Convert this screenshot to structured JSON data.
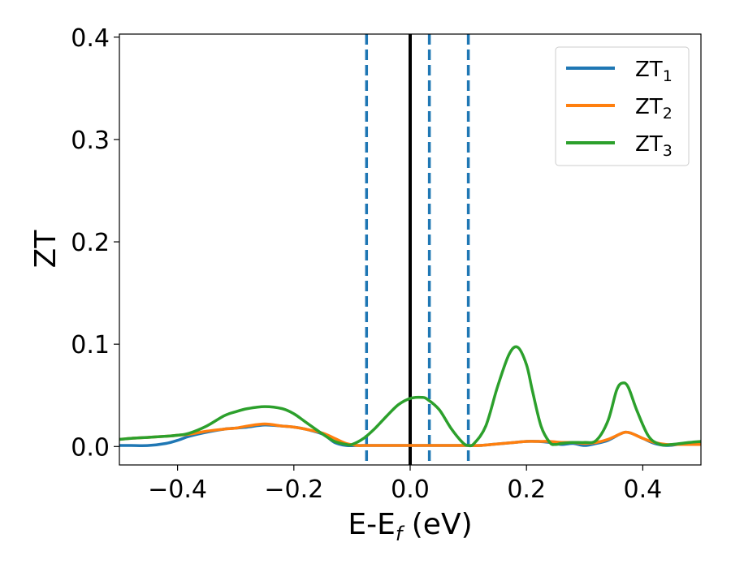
{
  "chart_data": {
    "type": "line",
    "xlabel": "E-E",
    "xlabel_sub": "f",
    "xlabel_unit": " (eV)",
    "ylabel": "ZT",
    "xlim": [
      -0.5,
      0.5
    ],
    "ylim": [
      -0.018,
      0.403
    ],
    "x_ticks": [
      -0.4,
      -0.2,
      0.0,
      0.2,
      0.4
    ],
    "x_tick_labels": [
      "−0.4",
      "−0.2",
      "0.0",
      "0.2",
      "0.4"
    ],
    "y_ticks": [
      0.0,
      0.1,
      0.2,
      0.3,
      0.4
    ],
    "y_tick_labels": [
      "0.0",
      "0.1",
      "0.2",
      "0.3",
      "0.4"
    ],
    "grid": false,
    "legend_position": "top-right",
    "vertical_lines": [
      {
        "x": -0.075,
        "style": "dashed",
        "color": "#1f77b4"
      },
      {
        "x": 0.0,
        "style": "solid",
        "color": "#000000"
      },
      {
        "x": 0.033,
        "style": "dashed",
        "color": "#1f77b4"
      },
      {
        "x": 0.1,
        "style": "dashed",
        "color": "#1f77b4"
      }
    ],
    "series": [
      {
        "name": "ZT",
        "name_sub": "1",
        "color": "#1f77b4",
        "x": [
          -0.5,
          -0.48,
          -0.45,
          -0.42,
          -0.4,
          -0.38,
          -0.35,
          -0.32,
          -0.3,
          -0.28,
          -0.25,
          -0.22,
          -0.2,
          -0.18,
          -0.15,
          -0.13,
          -0.11,
          -0.09,
          -0.08,
          -0.06,
          -0.04,
          -0.02,
          0.0,
          0.02,
          0.04,
          0.06,
          0.08,
          0.1,
          0.12,
          0.14,
          0.16,
          0.18,
          0.2,
          0.22,
          0.24,
          0.26,
          0.28,
          0.3,
          0.32,
          0.34,
          0.36,
          0.37,
          0.38,
          0.4,
          0.42,
          0.44,
          0.46,
          0.48,
          0.5
        ],
        "y": [
          0.001,
          0.001,
          0.001,
          0.003,
          0.006,
          0.01,
          0.014,
          0.017,
          0.018,
          0.019,
          0.021,
          0.02,
          0.019,
          0.017,
          0.012,
          0.004,
          0.001,
          0.001,
          0.001,
          0.001,
          0.001,
          0.001,
          0.001,
          0.001,
          0.001,
          0.001,
          0.001,
          0.001,
          0.001,
          0.002,
          0.003,
          0.004,
          0.005,
          0.005,
          0.004,
          0.002,
          0.003,
          0.001,
          0.003,
          0.006,
          0.012,
          0.014,
          0.013,
          0.008,
          0.003,
          0.001,
          0.002,
          0.003,
          0.004
        ]
      },
      {
        "name": "ZT",
        "name_sub": "2",
        "color": "#ff7f0e",
        "x": [
          -0.5,
          -0.48,
          -0.45,
          -0.42,
          -0.4,
          -0.38,
          -0.35,
          -0.32,
          -0.3,
          -0.28,
          -0.25,
          -0.22,
          -0.2,
          -0.18,
          -0.15,
          -0.13,
          -0.11,
          -0.09,
          -0.08,
          -0.06,
          -0.04,
          -0.02,
          0.0,
          0.02,
          0.04,
          0.06,
          0.08,
          0.1,
          0.12,
          0.14,
          0.16,
          0.18,
          0.2,
          0.22,
          0.24,
          0.26,
          0.28,
          0.3,
          0.32,
          0.34,
          0.36,
          0.37,
          0.38,
          0.4,
          0.42,
          0.44,
          0.46,
          0.48,
          0.5
        ],
        "y": [
          0.007,
          0.008,
          0.009,
          0.01,
          0.011,
          0.012,
          0.015,
          0.017,
          0.018,
          0.02,
          0.022,
          0.02,
          0.019,
          0.017,
          0.013,
          0.008,
          0.003,
          0.001,
          0.001,
          0.001,
          0.001,
          0.001,
          0.001,
          0.001,
          0.001,
          0.001,
          0.001,
          0.001,
          0.001,
          0.002,
          0.003,
          0.004,
          0.005,
          0.005,
          0.005,
          0.004,
          0.004,
          0.003,
          0.004,
          0.007,
          0.012,
          0.014,
          0.013,
          0.008,
          0.004,
          0.002,
          0.002,
          0.002,
          0.002
        ]
      },
      {
        "name": "ZT",
        "name_sub": "3",
        "color": "#2ca02c",
        "x": [
          -0.5,
          -0.48,
          -0.45,
          -0.42,
          -0.4,
          -0.38,
          -0.35,
          -0.32,
          -0.3,
          -0.28,
          -0.25,
          -0.22,
          -0.2,
          -0.18,
          -0.15,
          -0.13,
          -0.11,
          -0.1,
          -0.08,
          -0.06,
          -0.04,
          -0.02,
          0.0,
          0.02,
          0.03,
          0.05,
          0.07,
          0.09,
          0.1,
          0.11,
          0.13,
          0.15,
          0.17,
          0.185,
          0.2,
          0.21,
          0.225,
          0.24,
          0.25,
          0.26,
          0.28,
          0.3,
          0.32,
          0.34,
          0.355,
          0.365,
          0.375,
          0.39,
          0.41,
          0.43,
          0.45,
          0.48,
          0.5
        ],
        "y": [
          0.007,
          0.008,
          0.009,
          0.01,
          0.011,
          0.013,
          0.02,
          0.03,
          0.034,
          0.037,
          0.039,
          0.037,
          0.032,
          0.024,
          0.012,
          0.005,
          0.002,
          0.002,
          0.008,
          0.018,
          0.03,
          0.041,
          0.047,
          0.048,
          0.046,
          0.036,
          0.018,
          0.004,
          0.001,
          0.003,
          0.02,
          0.058,
          0.09,
          0.097,
          0.08,
          0.055,
          0.02,
          0.004,
          0.002,
          0.003,
          0.004,
          0.004,
          0.006,
          0.025,
          0.055,
          0.062,
          0.058,
          0.035,
          0.01,
          0.002,
          0.002,
          0.004,
          0.005
        ]
      }
    ]
  }
}
